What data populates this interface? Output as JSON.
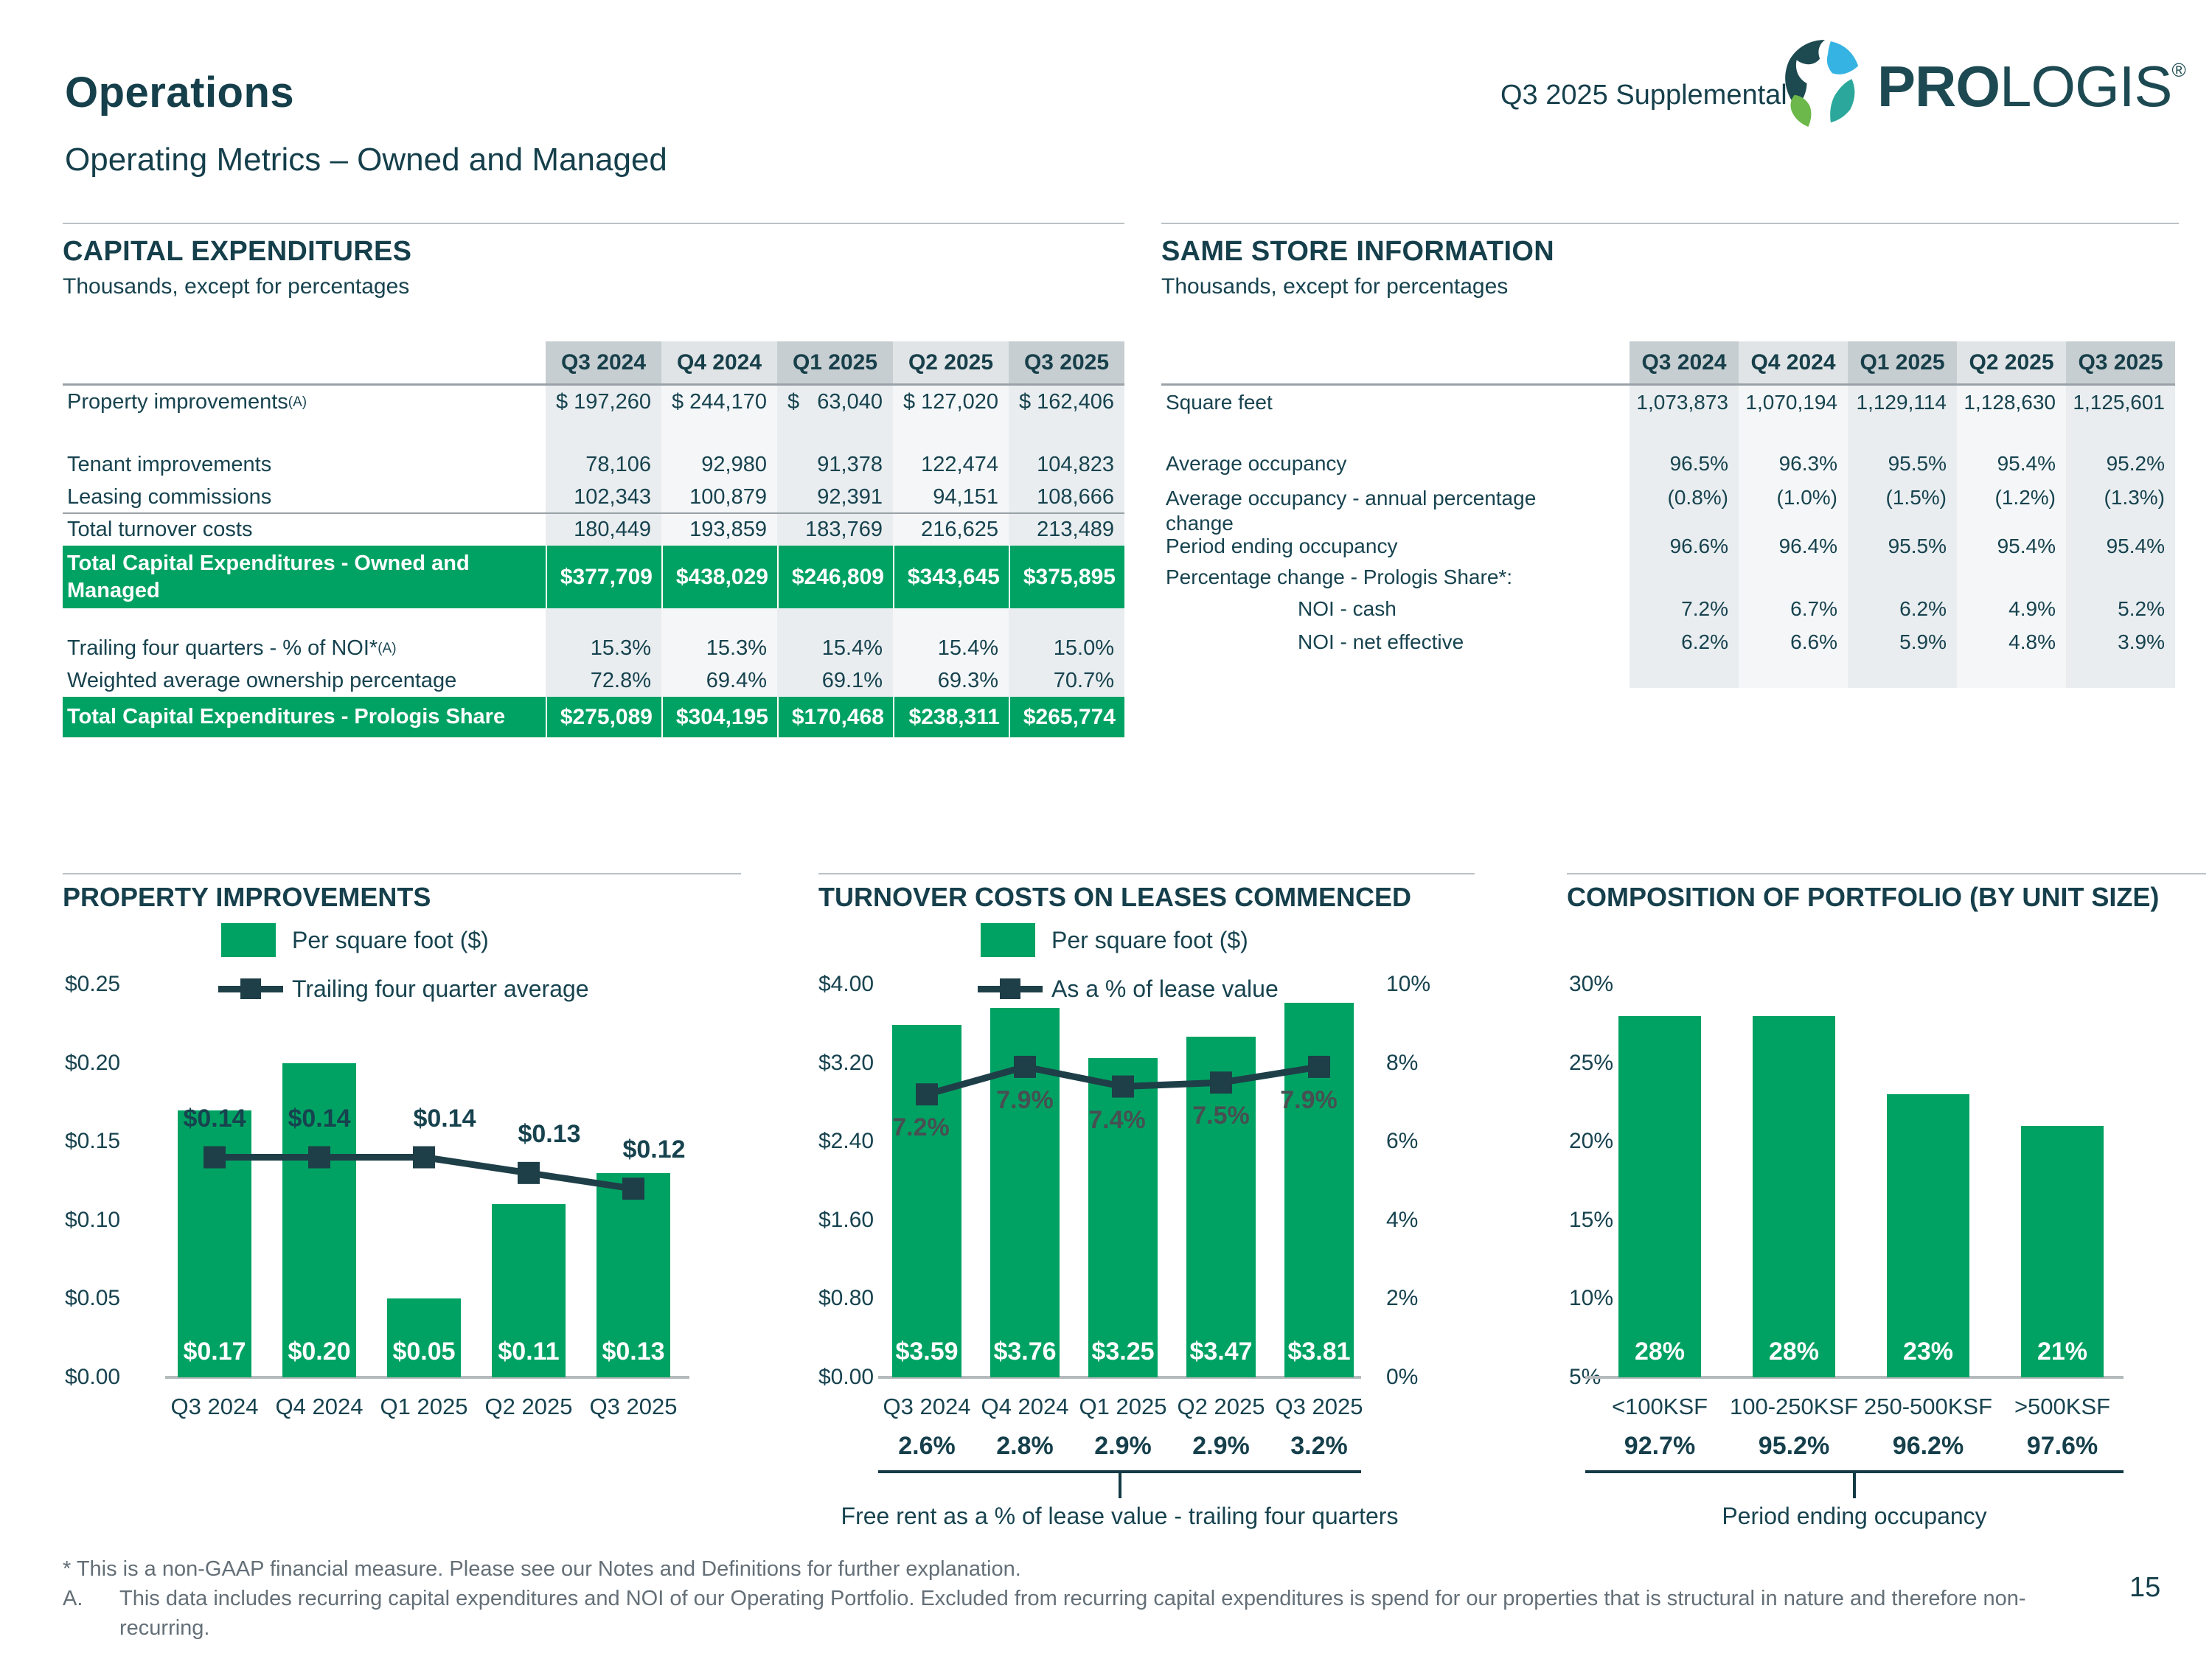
{
  "header": {
    "title": "Operations",
    "subtitle": "Operating Metrics – Owned and Managed",
    "supplemental": "Q3 2025 Supplemental",
    "brand": {
      "pro": "PRO",
      "logis": "LOGIS",
      "reg": "®"
    }
  },
  "sections": {
    "capex": {
      "title": "CAPITAL EXPENDITURES",
      "subtitle": "Thousands, except for percentages"
    },
    "samestore": {
      "title": "SAME STORE INFORMATION",
      "subtitle": "Thousands, except for percentages"
    }
  },
  "columns": [
    "Q3 2024",
    "Q4 2024",
    "Q1 2025",
    "Q2 2025",
    "Q3 2025"
  ],
  "capex_rows": [
    {
      "type": "data",
      "label": "Property improvements",
      "sup": "(A)",
      "values": [
        "$ 197,260",
        "$ 244,170",
        "$   63,040",
        "$ 127,020",
        "$ 162,406"
      ]
    },
    {
      "type": "blank"
    },
    {
      "type": "data",
      "label": "Tenant improvements",
      "values": [
        "78,106",
        "92,980",
        "91,378",
        "122,474",
        "104,823"
      ]
    },
    {
      "type": "data",
      "label": "Leasing commissions",
      "values": [
        "102,343",
        "100,879",
        "92,391",
        "94,151",
        "108,666"
      ]
    },
    {
      "type": "data",
      "label": "Total turnover costs",
      "rule_above": true,
      "values": [
        "180,449",
        "193,859",
        "183,769",
        "216,625",
        "213,489"
      ]
    },
    {
      "type": "total",
      "label": "Total Capital Expenditures - Owned and Managed",
      "two_line": true,
      "values": [
        "$377,709",
        "$438,029",
        "$246,809",
        "$343,645",
        "$375,895"
      ]
    },
    {
      "type": "blank"
    },
    {
      "type": "data",
      "label": "Trailing four quarters - % of NOI*",
      "sup": "(A)",
      "values": [
        "15.3%",
        "15.3%",
        "15.4%",
        "15.4%",
        "15.0%"
      ]
    },
    {
      "type": "data",
      "label": "Weighted average ownership percentage",
      "values": [
        "72.8%",
        "69.4%",
        "69.1%",
        "69.3%",
        "70.7%"
      ]
    },
    {
      "type": "total",
      "label": "Total Capital Expenditures - Prologis Share",
      "values": [
        "$275,089",
        "$304,195",
        "$170,468",
        "$238,311",
        "$265,774"
      ]
    }
  ],
  "samestore_rows": [
    {
      "type": "data",
      "label": "Square feet",
      "values": [
        "1,073,873",
        "1,070,194",
        "1,129,114",
        "1,128,630",
        "1,125,601"
      ]
    },
    {
      "type": "blank"
    },
    {
      "type": "data",
      "label": "Average occupancy",
      "values": [
        "96.5%",
        "96.3%",
        "95.5%",
        "95.4%",
        "95.2%"
      ]
    },
    {
      "type": "data",
      "label": "Average occupancy - annual percentage change",
      "two_line": true,
      "values": [
        "(0.8%)",
        "(1.0%)",
        "(1.5%)",
        "(1.2%)",
        "(1.3%)"
      ]
    },
    {
      "type": "data",
      "label": "Period ending occupancy",
      "values": [
        "96.6%",
        "96.4%",
        "95.5%",
        "95.4%",
        "95.4%"
      ]
    },
    {
      "type": "label",
      "label": "Percentage change - Prologis Share*:"
    },
    {
      "type": "data",
      "label": "NOI - cash",
      "indent": true,
      "values": [
        "7.2%",
        "6.7%",
        "6.2%",
        "4.9%",
        "5.2%"
      ]
    },
    {
      "type": "data",
      "label": "NOI - net effective",
      "indent": true,
      "values": [
        "6.2%",
        "6.6%",
        "5.9%",
        "4.8%",
        "3.9%"
      ]
    },
    {
      "type": "blank"
    }
  ],
  "chart_data": [
    {
      "type": "bar+line",
      "title": "PROPERTY IMPROVEMENTS",
      "legend": [
        {
          "marker": "bar",
          "label": "Per square foot ($)"
        },
        {
          "marker": "line",
          "label": "Trailing four quarter average"
        }
      ],
      "categories": [
        "Q3 2024",
        "Q4 2024",
        "Q1 2025",
        "Q2 2025",
        "Q3 2025"
      ],
      "bar_series": {
        "name": "Per square foot ($)",
        "values": [
          0.17,
          0.2,
          0.05,
          0.11,
          0.13
        ],
        "labels": [
          "$0.17",
          "$0.20",
          "$0.05",
          "$0.11",
          "$0.13"
        ]
      },
      "line_series": {
        "name": "Trailing four quarter average",
        "values": [
          0.14,
          0.14,
          0.14,
          0.13,
          0.12
        ],
        "labels": [
          "$0.14",
          "$0.14",
          "$0.14",
          "$0.13",
          "$0.12"
        ],
        "axis": "left"
      },
      "y_axis": {
        "min": 0,
        "max": 0.25,
        "ticks": [
          "$0.25",
          "$0.20",
          "$0.15",
          "$0.10",
          "$0.05",
          "$0.00"
        ]
      },
      "grid": false,
      "legend_position": "top"
    },
    {
      "type": "bar+line",
      "title": "TURNOVER COSTS ON LEASES COMMENCED",
      "legend": [
        {
          "marker": "bar",
          "label": "Per square foot ($)"
        },
        {
          "marker": "line",
          "label": "As a % of lease value"
        }
      ],
      "categories": [
        "Q3 2024",
        "Q4 2024",
        "Q1 2025",
        "Q2 2025",
        "Q3 2025"
      ],
      "bar_series": {
        "name": "Per square foot ($)",
        "values": [
          3.59,
          3.76,
          3.25,
          3.47,
          3.81
        ],
        "labels": [
          "$3.59",
          "$3.76",
          "$3.25",
          "$3.47",
          "$3.81"
        ]
      },
      "line_series": {
        "name": "As a % of lease value",
        "values": [
          7.2,
          7.9,
          7.4,
          7.5,
          7.9
        ],
        "labels": [
          "7.2%",
          "7.9%",
          "7.4%",
          "7.5%",
          "7.9%"
        ],
        "axis": "right"
      },
      "y_axis_left": {
        "min": 0,
        "max": 4,
        "ticks": [
          "$4.00",
          "$3.20",
          "$2.40",
          "$1.60",
          "$0.80",
          "$0.00"
        ]
      },
      "y_axis_right": {
        "min": 0,
        "max": 10,
        "ticks": [
          "10%",
          "8%",
          "6%",
          "4%",
          "2%",
          "0%"
        ]
      },
      "annotation_row": {
        "values": [
          "2.6%",
          "2.8%",
          "2.9%",
          "2.9%",
          "3.2%"
        ],
        "caption": "Free rent as a % of lease value - trailing four quarters"
      },
      "grid": false,
      "legend_position": "top"
    },
    {
      "type": "bar",
      "title": "COMPOSITION OF PORTFOLIO (BY UNIT SIZE)",
      "categories": [
        "<100KSF",
        "100-250KSF",
        "250-500KSF",
        ">500KSF"
      ],
      "values": [
        28,
        28,
        23,
        21
      ],
      "labels": [
        "28%",
        "28%",
        "23%",
        "21%"
      ],
      "y_axis": {
        "min": 5,
        "max": 30,
        "ticks": [
          "30%",
          "25%",
          "20%",
          "15%",
          "10%",
          "5%"
        ]
      },
      "annotation_row": {
        "values": [
          "92.7%",
          "95.2%",
          "96.2%",
          "97.6%"
        ],
        "caption": "Period ending occupancy"
      },
      "grid": false
    }
  ],
  "footnotes": {
    "star": "* This is a non-GAAP financial measure. Please see our Notes and Definitions for further explanation.",
    "a_label": "A.",
    "a_text": "This data includes recurring capital expenditures and NOI of our Operating Portfolio. Excluded from recurring capital expenditures is spend for our properties that is structural in nature and therefore non-recurring."
  },
  "page_number": "15",
  "colors": {
    "green": "#00A263",
    "teal": "#17434F",
    "marker": "#1E3F48",
    "light_blue": "#35B3E3",
    "leaf_green": "#6CB84A",
    "teal_green": "#2BA89B",
    "pct_label_gray": "#474F52"
  }
}
